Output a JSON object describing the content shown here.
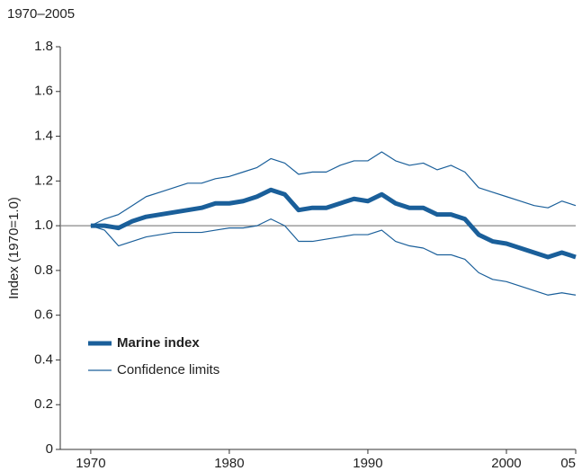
{
  "chart_data": {
    "type": "line",
    "title": "1970–2005",
    "y_label": "Index (1970=1.0)",
    "x": [
      1970,
      1971,
      1972,
      1973,
      1974,
      1975,
      1976,
      1977,
      1978,
      1979,
      1980,
      1981,
      1982,
      1983,
      1984,
      1985,
      1986,
      1987,
      1988,
      1989,
      1990,
      1991,
      1992,
      1993,
      1994,
      1995,
      1996,
      1997,
      1998,
      1999,
      2000,
      2001,
      2002,
      2003,
      2004,
      2005
    ],
    "series": [
      {
        "name": "Marine index",
        "color": "#1a5f9a",
        "values": [
          1.0,
          1.0,
          0.99,
          1.02,
          1.04,
          1.05,
          1.06,
          1.07,
          1.08,
          1.1,
          1.1,
          1.11,
          1.13,
          1.16,
          1.14,
          1.07,
          1.08,
          1.08,
          1.1,
          1.12,
          1.11,
          1.14,
          1.1,
          1.08,
          1.08,
          1.05,
          1.05,
          1.03,
          0.96,
          0.93,
          0.92,
          0.9,
          0.88,
          0.86,
          0.88,
          0.86
        ]
      },
      {
        "name": "Confidence limits",
        "color": "#1a5f9a",
        "values": [
          1.0,
          1.03,
          1.05,
          1.09,
          1.13,
          1.15,
          1.17,
          1.19,
          1.19,
          1.21,
          1.22,
          1.24,
          1.26,
          1.3,
          1.28,
          1.23,
          1.24,
          1.24,
          1.27,
          1.29,
          1.29,
          1.33,
          1.29,
          1.27,
          1.28,
          1.25,
          1.27,
          1.24,
          1.17,
          1.15,
          1.13,
          1.11,
          1.09,
          1.08,
          1.11,
          1.09
        ],
        "lower": [
          1.0,
          0.98,
          0.91,
          0.93,
          0.95,
          0.96,
          0.97,
          0.97,
          0.97,
          0.98,
          0.99,
          0.99,
          1.0,
          1.03,
          1.0,
          0.93,
          0.93,
          0.94,
          0.95,
          0.96,
          0.96,
          0.98,
          0.93,
          0.91,
          0.9,
          0.87,
          0.87,
          0.85,
          0.79,
          0.76,
          0.75,
          0.73,
          0.71,
          0.69,
          0.7,
          0.69
        ]
      }
    ],
    "xlim": [
      1967.8,
      2005
    ],
    "xticks": [
      1970,
      1980,
      1990,
      2000,
      {
        "value": 2005,
        "label": "05"
      }
    ],
    "ylim": [
      0,
      1.8
    ],
    "yticks": [
      0,
      0.2,
      0.4,
      0.6,
      0.8,
      {
        "value": 1,
        "label": "1.0"
      },
      1.2,
      1.4,
      1.6,
      1.8
    ],
    "reference_line": 1
  }
}
